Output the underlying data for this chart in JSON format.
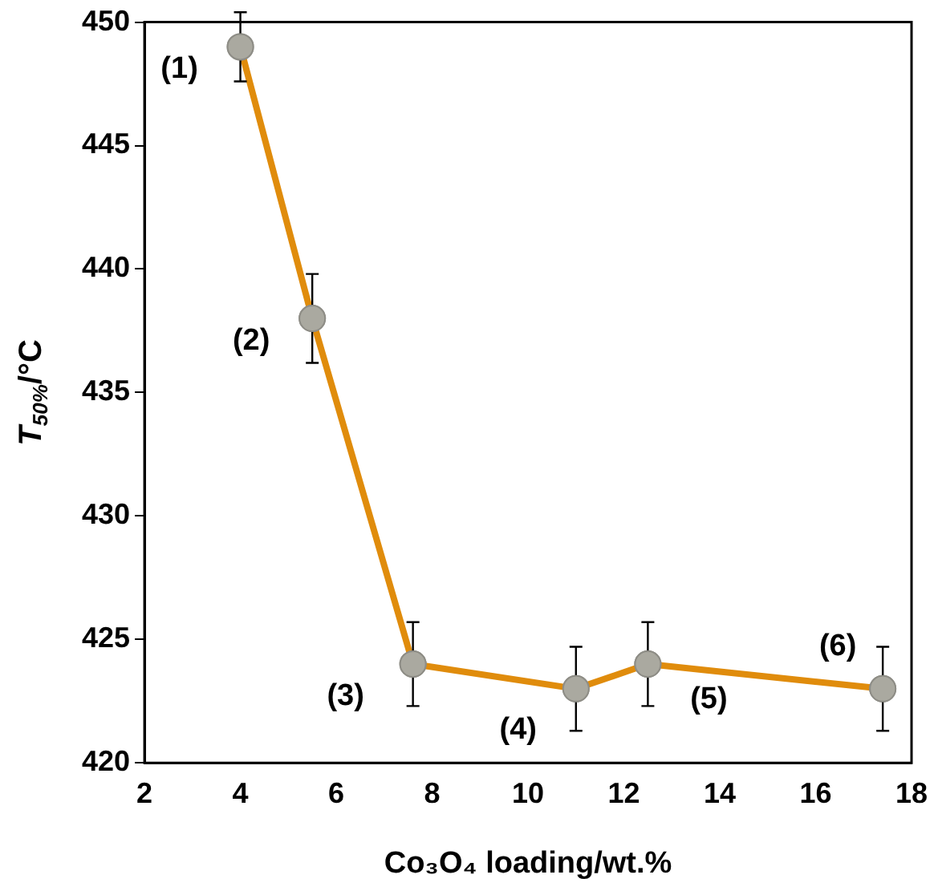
{
  "chart_data": {
    "type": "line",
    "xlabel": "Co₃O₄ loading/wt.%",
    "ylabel": "T$_{50%}$/°C",
    "x": [
      4,
      5.5,
      7.6,
      11,
      12.5,
      17.4
    ],
    "series": [
      {
        "color": "#e08c0c",
        "values": [
          449,
          438,
          424,
          423,
          424,
          423
        ],
        "errors": [
          1.4,
          1.8,
          1.7,
          1.7,
          1.7,
          1.7
        ]
      }
    ],
    "xlim": [
      2,
      18
    ],
    "xticks": [
      2,
      4,
      6,
      8,
      10,
      12,
      14,
      16,
      18
    ],
    "ylim": [
      420,
      450
    ],
    "yticks": [
      420,
      425,
      430,
      435,
      440,
      445,
      450
    ],
    "grid": false,
    "legend": false,
    "marker": "circle",
    "line_style": "solid",
    "annotations": [
      {
        "text": "(1)",
        "x": 4,
        "y": 449
      },
      {
        "text": "(2)",
        "x": 5.5,
        "y": 438
      },
      {
        "text": "(3)",
        "x": 7.6,
        "y": 424
      },
      {
        "text": "(4)",
        "x": 11,
        "y": 423
      },
      {
        "text": "(5)",
        "x": 12.5,
        "y": 424
      },
      {
        "text": "(6)",
        "x": 17.4,
        "y": 423
      }
    ]
  }
}
